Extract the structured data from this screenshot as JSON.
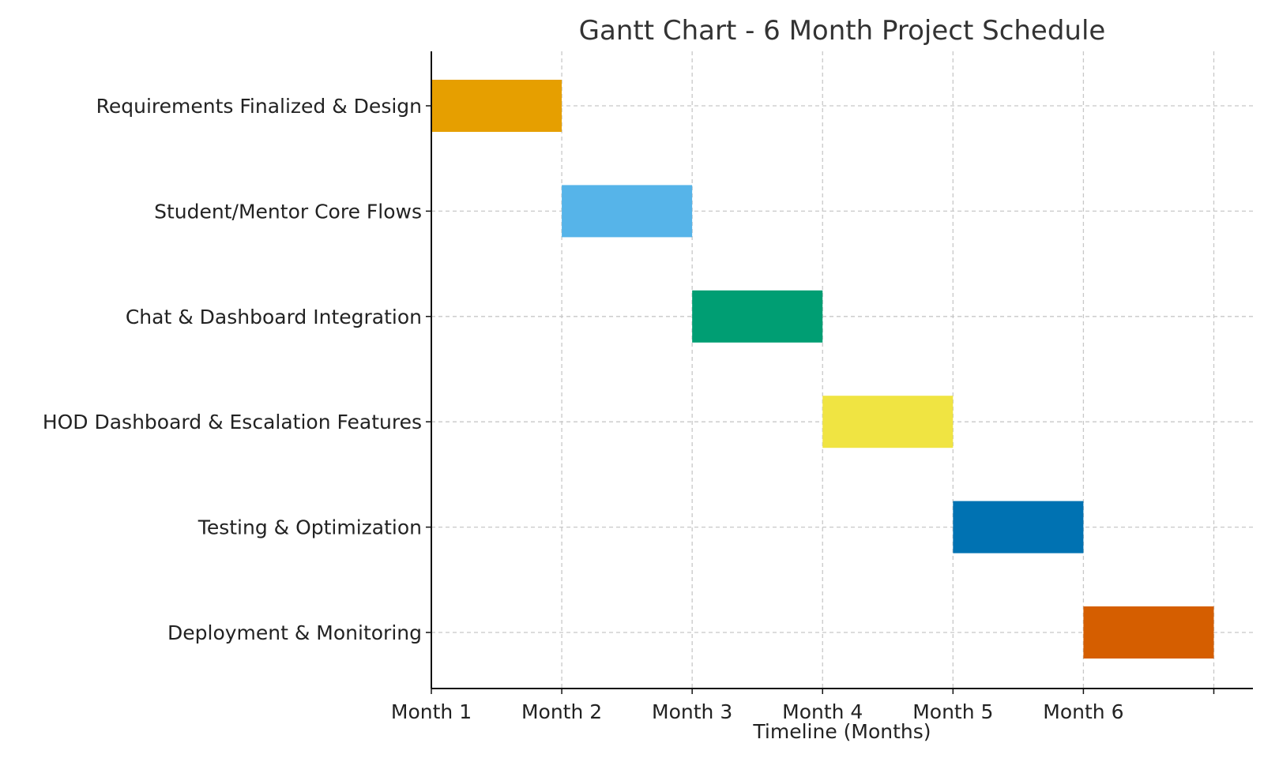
{
  "chart_data": {
    "type": "bar",
    "orientation": "horizontal",
    "title": "Gantt Chart - 6 Month Project Schedule",
    "xlabel": "Timeline (Months)",
    "ylabel": "",
    "xlim": [
      0,
      6.3
    ],
    "x_ticks": [
      0,
      1,
      2,
      3,
      4,
      5,
      6
    ],
    "x_tick_labels": [
      "Month 1",
      "Month 2",
      "Month 3",
      "Month 4",
      "Month 5",
      "Month 6",
      ""
    ],
    "grid": true,
    "tasks": [
      {
        "name": "Requirements Finalized & Design",
        "start": 0,
        "duration": 1,
        "color": "#E69F00"
      },
      {
        "name": "Student/Mentor Core Flows",
        "start": 1,
        "duration": 1,
        "color": "#56B4E9"
      },
      {
        "name": "Chat & Dashboard Integration",
        "start": 2,
        "duration": 1,
        "color": "#009E73"
      },
      {
        "name": "HOD Dashboard & Escalation Features",
        "start": 3,
        "duration": 1,
        "color": "#F0E442"
      },
      {
        "name": "Testing & Optimization",
        "start": 4,
        "duration": 1,
        "color": "#0072B2"
      },
      {
        "name": "Deployment & Monitoring",
        "start": 5,
        "duration": 1,
        "color": "#D55E00"
      }
    ]
  }
}
